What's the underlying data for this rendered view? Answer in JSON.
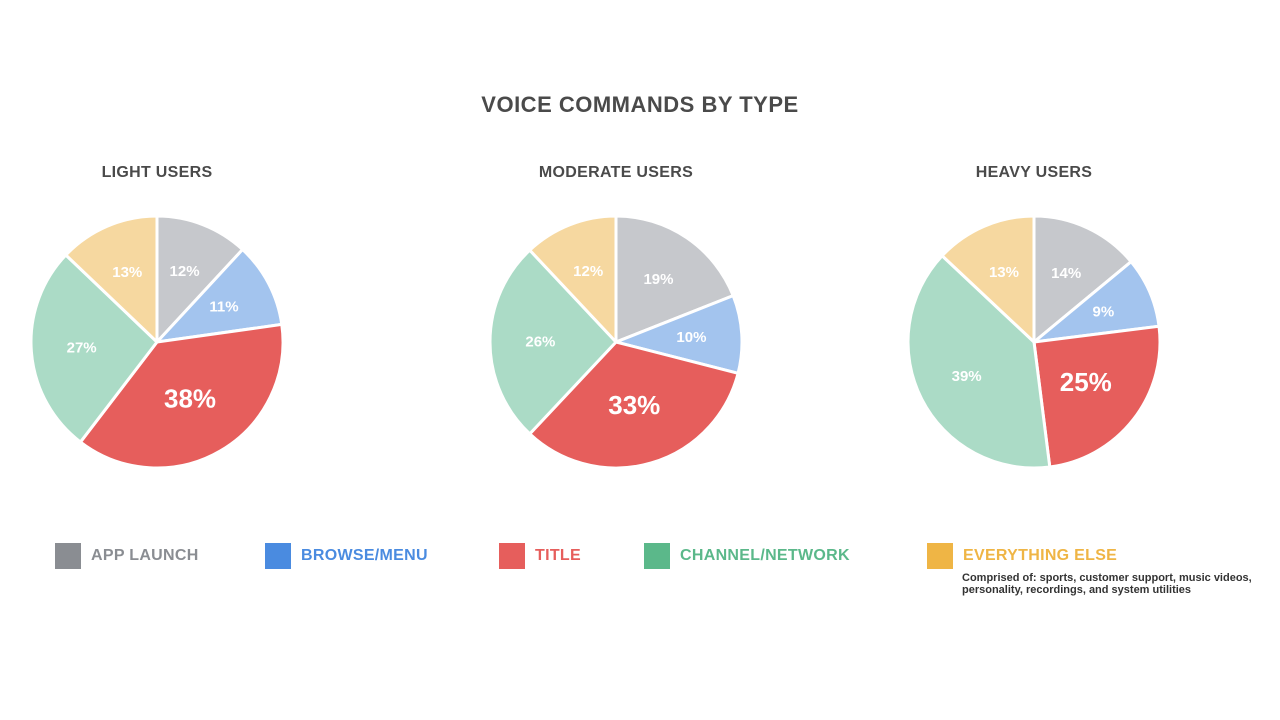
{
  "title": "VOICE COMMANDS BY TYPE",
  "colors": {
    "app_launch_slice": "#c6c8cc",
    "browse_slice": "#a3c4ee",
    "title_slice": "#e65e5c",
    "channel_slice": "#abdbc6",
    "else_slice": "#f6d8a0",
    "app_launch_legend": "#8a8d92",
    "browse_legend": "#4a8be0",
    "title_legend": "#e65e5c",
    "channel_legend": "#5bb88a",
    "else_legend": "#efb545"
  },
  "legend": [
    {
      "label": "APP LAUNCH",
      "swatch": "#8a8d92",
      "text_color": "#8a8d92"
    },
    {
      "label": "BROWSE/MENU",
      "swatch": "#4a8be0",
      "text_color": "#4a8be0"
    },
    {
      "label": "TITLE",
      "swatch": "#e65e5c",
      "text_color": "#e65e5c"
    },
    {
      "label": "CHANNEL/NETWORK",
      "swatch": "#5bb88a",
      "text_color": "#5bb88a"
    },
    {
      "label": "EVERYTHING ELSE",
      "swatch": "#efb545",
      "text_color": "#efb545"
    }
  ],
  "legend_note": "Comprised of: sports, customer support, music videos, personality, recordings, and system utilities",
  "chart_data": [
    {
      "type": "pie",
      "title": "LIGHT USERS",
      "categories": [
        "APP LAUNCH",
        "BROWSE/MENU",
        "TITLE",
        "CHANNEL/NETWORK",
        "EVERYTHING ELSE"
      ],
      "values": [
        12,
        11,
        38,
        27,
        13
      ],
      "labels": [
        "12%",
        "11%",
        "38%",
        "27%",
        "13%"
      ]
    },
    {
      "type": "pie",
      "title": "MODERATE USERS",
      "categories": [
        "APP LAUNCH",
        "BROWSE/MENU",
        "TITLE",
        "CHANNEL/NETWORK",
        "EVERYTHING ELSE"
      ],
      "values": [
        19,
        10,
        33,
        26,
        12
      ],
      "labels": [
        "19%",
        "10%",
        "33%",
        "26%",
        "12%"
      ]
    },
    {
      "type": "pie",
      "title": "HEAVY USERS",
      "categories": [
        "APP LAUNCH",
        "BROWSE/MENU",
        "TITLE",
        "CHANNEL/NETWORK",
        "EVERYTHING ELSE"
      ],
      "values": [
        14,
        9,
        25,
        39,
        13
      ],
      "labels": [
        "14%",
        "9%",
        "25%",
        "39%",
        "13%"
      ]
    }
  ]
}
